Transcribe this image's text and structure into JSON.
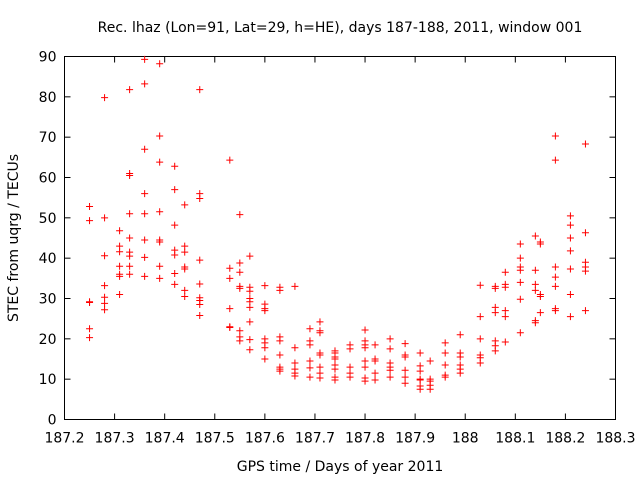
{
  "chart_data": {
    "type": "scatter",
    "title": "Rec. lhaz (Lon=91, Lat=29, h=HE), days 187-188, 2011, window 001",
    "xlabel": "GPS time / Days of year 2011",
    "ylabel": "STEC from uqrg / TECUs",
    "xlim": [
      187.2,
      188.3
    ],
    "ylim": [
      0,
      90
    ],
    "xticks": [
      "187.2",
      "187.3",
      "187.4",
      "187.5",
      "187.6",
      "187.7",
      "187.8",
      "187.9",
      "188",
      "188.1",
      "188.2",
      "188.3"
    ],
    "yticks": [
      "0",
      "10",
      "20",
      "30",
      "40",
      "50",
      "60",
      "70",
      "80",
      "90"
    ],
    "grid": false,
    "marker": "+",
    "color": "#ff0000",
    "series": [
      {
        "points": [
          [
            187.25,
            52.8
          ],
          [
            187.25,
            49.3
          ],
          [
            187.25,
            29.2
          ],
          [
            187.25,
            29.0
          ],
          [
            187.25,
            22.5
          ],
          [
            187.25,
            20.3
          ],
          [
            187.28,
            79.8
          ],
          [
            187.28,
            50.0
          ],
          [
            187.28,
            40.6
          ],
          [
            187.28,
            33.2
          ],
          [
            187.28,
            30.3
          ],
          [
            187.28,
            28.8
          ],
          [
            187.28,
            27.2
          ],
          [
            187.31,
            46.8
          ],
          [
            187.31,
            43.0
          ],
          [
            187.31,
            41.6
          ],
          [
            187.31,
            38.0
          ],
          [
            187.31,
            36.0
          ],
          [
            187.31,
            35.5
          ],
          [
            187.31,
            31.0
          ],
          [
            187.33,
            81.8
          ],
          [
            187.33,
            61.0
          ],
          [
            187.33,
            60.5
          ],
          [
            187.33,
            51.0
          ],
          [
            187.33,
            45.0
          ],
          [
            187.33,
            41.5
          ],
          [
            187.33,
            40.5
          ],
          [
            187.33,
            38.0
          ],
          [
            187.33,
            36.0
          ],
          [
            187.36,
            89.3
          ],
          [
            187.36,
            83.2
          ],
          [
            187.36,
            67.0
          ],
          [
            187.36,
            56.0
          ],
          [
            187.36,
            51.0
          ],
          [
            187.36,
            44.5
          ],
          [
            187.36,
            40.2
          ],
          [
            187.36,
            35.5
          ],
          [
            187.39,
            88.2
          ],
          [
            187.39,
            70.3
          ],
          [
            187.39,
            63.8
          ],
          [
            187.39,
            51.5
          ],
          [
            187.39,
            44.5
          ],
          [
            187.39,
            44.0
          ],
          [
            187.39,
            38.0
          ],
          [
            187.39,
            35.0
          ],
          [
            187.42,
            62.8
          ],
          [
            187.42,
            57.0
          ],
          [
            187.42,
            48.2
          ],
          [
            187.42,
            42.0
          ],
          [
            187.42,
            40.8
          ],
          [
            187.42,
            36.2
          ],
          [
            187.42,
            33.5
          ],
          [
            187.44,
            53.2
          ],
          [
            187.44,
            43.0
          ],
          [
            187.44,
            41.5
          ],
          [
            187.44,
            37.8
          ],
          [
            187.44,
            37.3
          ],
          [
            187.44,
            32.0
          ],
          [
            187.44,
            30.5
          ],
          [
            187.47,
            81.8
          ],
          [
            187.47,
            56.0
          ],
          [
            187.47,
            54.8
          ],
          [
            187.47,
            39.5
          ],
          [
            187.47,
            33.6
          ],
          [
            187.47,
            30.2
          ],
          [
            187.47,
            29.5
          ],
          [
            187.47,
            28.5
          ],
          [
            187.47,
            25.8
          ],
          [
            187.53,
            64.3
          ],
          [
            187.53,
            37.5
          ],
          [
            187.53,
            35.0
          ],
          [
            187.53,
            27.5
          ],
          [
            187.53,
            23.0
          ],
          [
            187.53,
            22.8
          ],
          [
            187.55,
            50.8
          ],
          [
            187.55,
            38.8
          ],
          [
            187.55,
            36.5
          ],
          [
            187.55,
            33.0
          ],
          [
            187.55,
            32.5
          ],
          [
            187.55,
            22.0
          ],
          [
            187.55,
            20.5
          ],
          [
            187.55,
            19.5
          ],
          [
            187.57,
            40.5
          ],
          [
            187.57,
            32.8
          ],
          [
            187.57,
            31.8
          ],
          [
            187.57,
            30.0
          ],
          [
            187.57,
            29.2
          ],
          [
            187.57,
            27.8
          ],
          [
            187.57,
            24.2
          ],
          [
            187.57,
            19.8
          ],
          [
            187.57,
            17.3
          ],
          [
            187.6,
            33.2
          ],
          [
            187.6,
            28.6
          ],
          [
            187.6,
            27.5
          ],
          [
            187.6,
            27.0
          ],
          [
            187.6,
            20.0
          ],
          [
            187.6,
            19.0
          ],
          [
            187.6,
            17.8
          ],
          [
            187.6,
            15.0
          ],
          [
            187.63,
            32.8
          ],
          [
            187.63,
            32.0
          ],
          [
            187.63,
            20.5
          ],
          [
            187.63,
            19.5
          ],
          [
            187.63,
            16.0
          ],
          [
            187.63,
            13.0
          ],
          [
            187.63,
            12.5
          ],
          [
            187.63,
            12.0
          ],
          [
            187.66,
            33.0
          ],
          [
            187.66,
            17.8
          ],
          [
            187.66,
            14.0
          ],
          [
            187.66,
            12.5
          ],
          [
            187.66,
            11.5
          ],
          [
            187.66,
            10.8
          ],
          [
            187.69,
            22.5
          ],
          [
            187.69,
            19.5
          ],
          [
            187.69,
            18.5
          ],
          [
            187.69,
            14.5
          ],
          [
            187.69,
            12.8
          ],
          [
            187.69,
            10.5
          ],
          [
            187.71,
            24.2
          ],
          [
            187.71,
            22.0
          ],
          [
            187.71,
            21.5
          ],
          [
            187.71,
            16.5
          ],
          [
            187.71,
            16.0
          ],
          [
            187.71,
            13.0
          ],
          [
            187.71,
            11.5
          ],
          [
            187.71,
            10.3
          ],
          [
            187.74,
            17.0
          ],
          [
            187.74,
            16.5
          ],
          [
            187.74,
            15.5
          ],
          [
            187.74,
            15.0
          ],
          [
            187.74,
            13.5
          ],
          [
            187.74,
            12.5
          ],
          [
            187.74,
            10.5
          ],
          [
            187.74,
            9.8
          ],
          [
            187.77,
            18.5
          ],
          [
            187.77,
            17.5
          ],
          [
            187.77,
            13.0
          ],
          [
            187.77,
            11.5
          ],
          [
            187.77,
            10.5
          ],
          [
            187.8,
            22.2
          ],
          [
            187.8,
            19.5
          ],
          [
            187.8,
            18.5
          ],
          [
            187.8,
            17.8
          ],
          [
            187.8,
            14.5
          ],
          [
            187.8,
            13.0
          ],
          [
            187.8,
            10.3
          ],
          [
            187.8,
            9.5
          ],
          [
            187.82,
            18.5
          ],
          [
            187.82,
            15.0
          ],
          [
            187.82,
            14.5
          ],
          [
            187.82,
            11.5
          ],
          [
            187.82,
            9.8
          ],
          [
            187.85,
            20.0
          ],
          [
            187.85,
            17.5
          ],
          [
            187.85,
            14.0
          ],
          [
            187.85,
            13.0
          ],
          [
            187.85,
            12.2
          ],
          [
            187.85,
            10.5
          ],
          [
            187.88,
            18.8
          ],
          [
            187.88,
            16.0
          ],
          [
            187.88,
            15.5
          ],
          [
            187.88,
            12.2
          ],
          [
            187.88,
            10.5
          ],
          [
            187.88,
            9.0
          ],
          [
            187.91,
            16.5
          ],
          [
            187.91,
            13.3
          ],
          [
            187.91,
            12.0
          ],
          [
            187.91,
            10.0
          ],
          [
            187.91,
            9.8
          ],
          [
            187.91,
            8.3
          ],
          [
            187.91,
            7.5
          ],
          [
            187.93,
            14.5
          ],
          [
            187.93,
            10.0
          ],
          [
            187.93,
            9.5
          ],
          [
            187.93,
            8.5
          ],
          [
            187.93,
            7.5
          ],
          [
            187.96,
            19.0
          ],
          [
            187.96,
            16.5
          ],
          [
            187.96,
            13.5
          ],
          [
            187.96,
            11.0
          ],
          [
            187.96,
            10.5
          ],
          [
            187.99,
            21.0
          ],
          [
            187.99,
            16.5
          ],
          [
            187.99,
            15.5
          ],
          [
            187.99,
            13.5
          ],
          [
            187.99,
            12.5
          ],
          [
            187.99,
            11.5
          ],
          [
            188.03,
            33.3
          ],
          [
            188.03,
            25.5
          ],
          [
            188.03,
            20.0
          ],
          [
            188.03,
            16.0
          ],
          [
            188.03,
            15.3
          ],
          [
            188.03,
            14.0
          ],
          [
            188.06,
            33.0
          ],
          [
            188.06,
            32.5
          ],
          [
            188.06,
            27.8
          ],
          [
            188.06,
            26.5
          ],
          [
            188.06,
            19.5
          ],
          [
            188.06,
            18.3
          ],
          [
            188.06,
            17.0
          ],
          [
            188.08,
            36.5
          ],
          [
            188.08,
            33.5
          ],
          [
            188.08,
            32.8
          ],
          [
            188.08,
            27.0
          ],
          [
            188.08,
            25.5
          ],
          [
            188.08,
            19.2
          ],
          [
            188.11,
            43.5
          ],
          [
            188.11,
            40.0
          ],
          [
            188.11,
            37.8
          ],
          [
            188.11,
            37.0
          ],
          [
            188.11,
            34.0
          ],
          [
            188.11,
            29.8
          ],
          [
            188.11,
            21.5
          ],
          [
            188.14,
            45.5
          ],
          [
            188.14,
            37.0
          ],
          [
            188.14,
            33.5
          ],
          [
            188.14,
            32.0
          ],
          [
            188.14,
            24.5
          ],
          [
            188.14,
            24.0
          ],
          [
            188.15,
            44.0
          ],
          [
            188.15,
            43.5
          ],
          [
            188.15,
            31.0
          ],
          [
            188.15,
            30.5
          ],
          [
            188.15,
            26.5
          ],
          [
            188.18,
            70.3
          ],
          [
            188.18,
            64.3
          ],
          [
            188.18,
            37.8
          ],
          [
            188.18,
            35.3
          ],
          [
            188.18,
            33.0
          ],
          [
            188.18,
            27.5
          ],
          [
            188.18,
            27.0
          ],
          [
            188.21,
            50.5
          ],
          [
            188.21,
            48.2
          ],
          [
            188.21,
            45.0
          ],
          [
            188.21,
            41.8
          ],
          [
            188.21,
            37.3
          ],
          [
            188.21,
            31.0
          ],
          [
            188.21,
            25.5
          ],
          [
            188.24,
            68.3
          ],
          [
            188.24,
            46.3
          ],
          [
            188.24,
            39.0
          ],
          [
            188.24,
            37.8
          ],
          [
            188.24,
            36.8
          ],
          [
            188.24,
            27.0
          ]
        ]
      }
    ]
  }
}
